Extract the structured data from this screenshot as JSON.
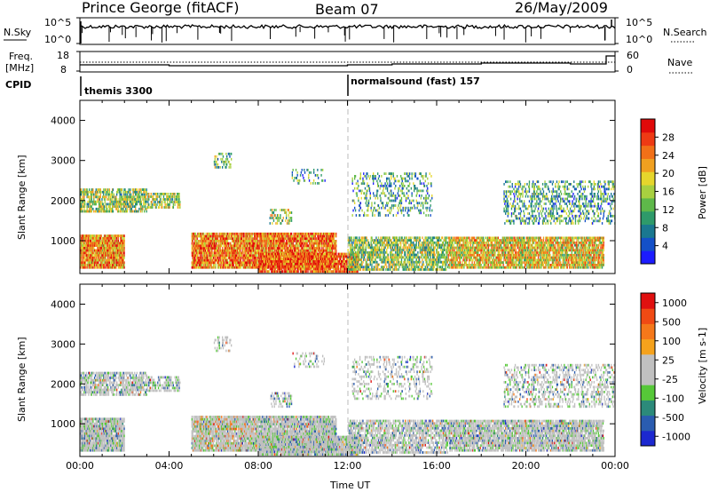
{
  "header": {
    "radar": "Prince George (fitACF)",
    "beam": "Beam 07",
    "date": "26/May/2009"
  },
  "labels": {
    "nsky": "N.Sky",
    "freq_line1": "Freq.",
    "freq_line2": "[MHz]",
    "cpid": "CPID",
    "nsearch": "N.Search",
    "nave": "Nave",
    "nsky_ticks": [
      "10^5",
      "10^0"
    ],
    "nsearch_ticks": [
      "10^5",
      "10^0"
    ],
    "freq_ticks": [
      "18",
      "8"
    ],
    "nave_ticks": [
      "60",
      "0"
    ],
    "time_label": "Time UT"
  },
  "cpid_segments": [
    {
      "start_hour": 0,
      "label": "themis 3300"
    },
    {
      "start_hour": 12,
      "label": "normalsound (fast) 157"
    }
  ],
  "chart_data": [
    {
      "type": "heatmap",
      "title": "Power",
      "ylabel": "Slant Range [km]",
      "xlabel": "",
      "x_range_hours": [
        0,
        24
      ],
      "ylim": [
        180,
        4500
      ],
      "y_ticks": [
        "1000",
        "2000",
        "3000",
        "4000"
      ],
      "x_ticks": [
        "00:00",
        "04:00",
        "08:00",
        "12:00",
        "16:00",
        "20:00",
        "00:00"
      ],
      "colorbar": {
        "label": "Power [dB]",
        "ticks": [
          "4",
          "8",
          "12",
          "16",
          "20",
          "24",
          "28"
        ],
        "range": [
          0,
          30
        ],
        "colors": [
          "#1c1cff",
          "#1450c8",
          "#1a7890",
          "#2e9a6a",
          "#5eb84a",
          "#a8d040",
          "#e6d62c",
          "#f0a020",
          "#f27018",
          "#ee3a14",
          "#e00a0a"
        ]
      }
    },
    {
      "type": "heatmap",
      "title": "Velocity",
      "ylabel": "Slant Range [km]",
      "xlabel": "Time UT",
      "x_range_hours": [
        0,
        24
      ],
      "ylim": [
        180,
        4500
      ],
      "y_ticks": [
        "1000",
        "2000",
        "3000",
        "4000"
      ],
      "x_ticks": [
        "00:00",
        "04:00",
        "08:00",
        "12:00",
        "16:00",
        "20:00",
        "00:00"
      ],
      "colorbar": {
        "label": "Velocity [m s-1]",
        "ticks": [
          "1000",
          "500",
          "100",
          "25",
          "-25",
          "-100",
          "-500",
          "-1000"
        ],
        "colors": [
          "#1c28d0",
          "#2a5cb0",
          "#2c8a7a",
          "#56c838",
          "#c0c0c0",
          "#c0c0c0",
          "#f5a21c",
          "#f5781a",
          "#f04a14",
          "#e01010"
        ]
      }
    }
  ]
}
